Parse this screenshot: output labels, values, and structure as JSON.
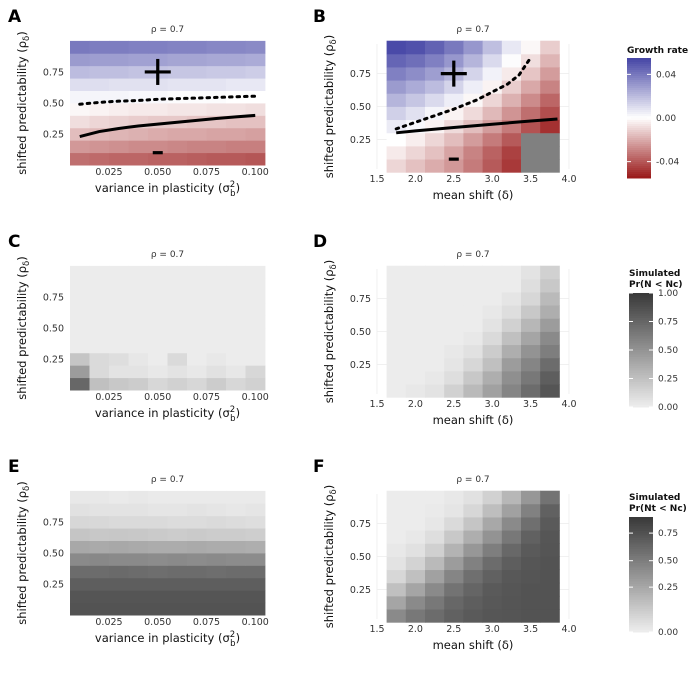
{
  "figure": {
    "panel_letters": [
      "A",
      "B",
      "C",
      "D",
      "E",
      "F"
    ],
    "strip_text": "ρ = 0.7",
    "xlabel_left": "variance in plasticity (σb²)",
    "xlabel_right": "mean shift (δ)",
    "ylabel": "shifted predictability (ρδ)"
  },
  "legends": {
    "growth": {
      "title": "Growth rate",
      "ticks": [
        "0.04",
        "0.00",
        "-0.04"
      ],
      "colors": {
        "high": "#4747a6",
        "mid": "#ffffff",
        "low": "#9b1c1c"
      }
    },
    "prob1": {
      "title_line1": "Simulated",
      "title_line2": "Pr(N < Nc)",
      "ticks": [
        "1.00",
        "0.75",
        "0.50",
        "0.25",
        "0.00"
      ]
    },
    "prob2": {
      "title_line1": "Simulated",
      "title_line2": "Pr(Nt < Nc)",
      "ticks": [
        "0.75",
        "0.50",
        "0.25",
        "0.00"
      ]
    }
  },
  "chart_data": [
    {
      "panel": "A",
      "type": "heatmap",
      "title": "ρ = 0.7",
      "xlabel": "variance in plasticity (σb²)",
      "ylabel": "shifted predictability (ρδ)",
      "x_range": [
        0.005,
        0.105
      ],
      "y_range": [
        0.025,
        0.975
      ],
      "x_ticks": [
        0.025,
        0.05,
        0.075,
        0.1
      ],
      "x_tick_labels": [
        "0.025",
        "0.050",
        "0.075",
        "0.100"
      ],
      "y_ticks": [
        0.25,
        0.5,
        0.75
      ],
      "y_tick_labels": [
        "0.25",
        "0.50",
        "0.75"
      ],
      "x_cells": [
        0.01,
        0.02,
        0.03,
        0.04,
        0.05,
        0.06,
        0.07,
        0.08,
        0.09,
        0.1
      ],
      "y_cells": [
        0.05,
        0.15,
        0.25,
        0.35,
        0.45,
        0.55,
        0.65,
        0.75,
        0.85,
        0.95
      ],
      "fill": "growth_rate",
      "grid_values": [
        [
          -0.035,
          -0.036,
          -0.037,
          -0.037,
          -0.038,
          -0.038,
          -0.039,
          -0.04,
          -0.04,
          -0.041
        ],
        [
          -0.025,
          -0.026,
          -0.027,
          -0.028,
          -0.028,
          -0.029,
          -0.03,
          -0.03,
          -0.031,
          -0.031
        ],
        [
          -0.016,
          -0.017,
          -0.018,
          -0.019,
          -0.02,
          -0.021,
          -0.021,
          -0.022,
          -0.022,
          -0.023
        ],
        [
          -0.008,
          -0.01,
          -0.011,
          -0.012,
          -0.013,
          -0.013,
          -0.014,
          -0.014,
          -0.015,
          -0.015
        ],
        [
          -0.002,
          -0.003,
          -0.004,
          -0.005,
          -0.005,
          -0.006,
          -0.006,
          -0.007,
          -0.007,
          -0.008
        ],
        [
          0.003,
          0.003,
          0.003,
          0.002,
          0.002,
          0.001,
          0.001,
          0.001,
          0.0,
          0.0
        ],
        [
          0.01,
          0.01,
          0.009,
          0.009,
          0.009,
          0.008,
          0.008,
          0.008,
          0.007,
          0.007
        ],
        [
          0.02,
          0.019,
          0.019,
          0.018,
          0.018,
          0.017,
          0.017,
          0.016,
          0.016,
          0.015
        ],
        [
          0.03,
          0.029,
          0.029,
          0.028,
          0.028,
          0.027,
          0.027,
          0.026,
          0.026,
          0.025
        ],
        [
          0.04,
          0.039,
          0.039,
          0.038,
          0.038,
          0.037,
          0.037,
          0.036,
          0.036,
          0.035
        ]
      ],
      "solid_line": {
        "x": [
          0.01,
          0.02,
          0.03,
          0.04,
          0.05,
          0.06,
          0.07,
          0.08,
          0.09,
          0.1
        ],
        "y": [
          0.23,
          0.27,
          0.295,
          0.315,
          0.33,
          0.345,
          0.36,
          0.375,
          0.388,
          0.4
        ]
      },
      "dotted_line": {
        "x": [
          0.01,
          0.02,
          0.03,
          0.04,
          0.05,
          0.06,
          0.07,
          0.08,
          0.09,
          0.1
        ],
        "y": [
          0.49,
          0.505,
          0.515,
          0.52,
          0.53,
          0.535,
          0.54,
          0.545,
          0.55,
          0.555
        ]
      },
      "plus_marker": {
        "x": 0.05,
        "y": 0.75,
        "text": "+"
      },
      "minus_marker": {
        "x": 0.05,
        "y": 0.1,
        "text": "−"
      }
    },
    {
      "panel": "B",
      "type": "heatmap",
      "title": "ρ = 0.7",
      "xlabel": "mean shift (δ)",
      "ylabel": "shifted predictability (ρδ)",
      "x_range": [
        1.5,
        4.0
      ],
      "y_range": [
        0.025,
        0.975
      ],
      "x_ticks": [
        1.5,
        2.0,
        2.5,
        3.0,
        3.5,
        4.0
      ],
      "x_tick_labels": [
        "1.5",
        "2.0",
        "2.5",
        "3.0",
        "3.5",
        "4.0"
      ],
      "y_ticks": [
        0.25,
        0.5,
        0.75
      ],
      "y_tick_labels": [
        "0.25",
        "0.50",
        "0.75"
      ],
      "x_cells": [
        1.75,
        2.0,
        2.25,
        2.5,
        2.75,
        3.0,
        3.25,
        3.5,
        3.75
      ],
      "y_cells": [
        0.05,
        0.15,
        0.25,
        0.35,
        0.45,
        0.55,
        0.65,
        0.75,
        0.85,
        0.95
      ],
      "fill": "growth_rate (NA shown grey)",
      "grid_values": [
        [
          -0.01,
          -0.015,
          -0.02,
          -0.025,
          -0.032,
          -0.04,
          -0.048,
          null,
          null
        ],
        [
          -0.005,
          -0.01,
          -0.015,
          -0.022,
          -0.03,
          -0.038,
          -0.046,
          null,
          null
        ],
        [
          0.0,
          -0.004,
          -0.01,
          -0.016,
          -0.024,
          -0.032,
          -0.04,
          null,
          null
        ],
        [
          0.006,
          0.002,
          -0.003,
          -0.009,
          -0.016,
          -0.024,
          -0.032,
          -0.042,
          -0.05
        ],
        [
          0.014,
          0.009,
          0.003,
          -0.003,
          -0.009,
          -0.017,
          -0.026,
          -0.035,
          -0.043
        ],
        [
          0.022,
          0.017,
          0.011,
          0.005,
          -0.002,
          -0.01,
          -0.019,
          -0.028,
          -0.037
        ],
        [
          0.03,
          0.025,
          0.02,
          0.013,
          0.005,
          -0.003,
          -0.012,
          -0.021,
          -0.03
        ],
        [
          0.038,
          0.034,
          0.029,
          0.022,
          0.013,
          0.004,
          -0.005,
          -0.014,
          -0.024
        ],
        [
          0.046,
          0.043,
          0.038,
          0.031,
          0.022,
          0.011,
          0.001,
          -0.008,
          -0.018
        ],
        [
          0.054,
          0.052,
          0.047,
          0.04,
          0.031,
          0.019,
          0.007,
          -0.002,
          -0.012
        ]
      ],
      "solid_line": {
        "x": [
          1.75,
          2.0,
          2.5,
          3.0,
          3.5,
          3.85
        ],
        "y": [
          0.3,
          0.315,
          0.34,
          0.365,
          0.39,
          0.405
        ]
      },
      "dotted_line": {
        "x": [
          1.75,
          2.0,
          2.5,
          2.8,
          3.0,
          3.2,
          3.35,
          3.5
        ],
        "y": [
          0.33,
          0.38,
          0.48,
          0.55,
          0.61,
          0.67,
          0.74,
          0.87
        ]
      },
      "plus_marker": {
        "x": 2.5,
        "y": 0.75,
        "text": "+"
      },
      "minus_marker": {
        "x": 2.5,
        "y": 0.1,
        "text": "−"
      }
    },
    {
      "panel": "C",
      "type": "heatmap",
      "title": "ρ = 0.7",
      "xlabel": "variance in plasticity (σb²)",
      "ylabel": "shifted predictability (ρδ)",
      "x_range": [
        0.005,
        0.105
      ],
      "y_range": [
        0.025,
        0.975
      ],
      "x_ticks": [
        0.025,
        0.05,
        0.075,
        0.1
      ],
      "x_tick_labels": [
        "0.025",
        "0.050",
        "0.075",
        "0.100"
      ],
      "y_ticks": [
        0.25,
        0.5,
        0.75
      ],
      "y_tick_labels": [
        "0.25",
        "0.50",
        "0.75"
      ],
      "x_cells": [
        0.01,
        0.02,
        0.03,
        0.04,
        0.05,
        0.06,
        0.07,
        0.08,
        0.09,
        0.1
      ],
      "y_cells": [
        0.05,
        0.15,
        0.25,
        0.35,
        0.45,
        0.55,
        0.65,
        0.75,
        0.85,
        0.95
      ],
      "fill": "Pr(N < Nc)",
      "grid_values": [
        [
          0.75,
          0.25,
          0.2,
          0.18,
          0.12,
          0.15,
          0.12,
          0.18,
          0.12,
          0.15
        ],
        [
          0.45,
          0.1,
          0.05,
          0.05,
          0.02,
          0.05,
          0.02,
          0.06,
          0.03,
          0.12
        ],
        [
          0.22,
          0.1,
          0.08,
          0.03,
          0.0,
          0.1,
          0.0,
          0.02,
          0.0,
          0.0
        ],
        [
          0.0,
          0.0,
          0.0,
          0.0,
          0.0,
          0.0,
          0.0,
          0.0,
          0.0,
          0.0
        ],
        [
          0,
          0,
          0,
          0,
          0,
          0,
          0,
          0,
          0,
          0
        ],
        [
          0,
          0,
          0,
          0,
          0,
          0,
          0,
          0,
          0,
          0
        ],
        [
          0,
          0,
          0,
          0,
          0,
          0,
          0,
          0,
          0,
          0
        ],
        [
          0,
          0,
          0,
          0,
          0,
          0,
          0,
          0,
          0,
          0
        ],
        [
          0,
          0,
          0,
          0,
          0,
          0,
          0,
          0,
          0,
          0
        ],
        [
          0,
          0,
          0,
          0,
          0,
          0,
          0,
          0,
          0,
          0
        ]
      ]
    },
    {
      "panel": "D",
      "type": "heatmap",
      "title": "ρ = 0.7",
      "xlabel": "mean shift (δ)",
      "ylabel": "shifted predictability (ρδ)",
      "x_range": [
        1.5,
        4.0
      ],
      "y_range": [
        0.025,
        0.975
      ],
      "x_ticks": [
        1.5,
        2.0,
        2.5,
        3.0,
        3.5,
        4.0
      ],
      "x_tick_labels": [
        "1.5",
        "2.0",
        "2.5",
        "3.0",
        "3.5",
        "4.0"
      ],
      "y_ticks": [
        0.25,
        0.5,
        0.75
      ],
      "y_tick_labels": [
        "0.25",
        "0.50",
        "0.75"
      ],
      "x_cells": [
        1.75,
        2.0,
        2.25,
        2.5,
        2.75,
        3.0,
        3.25,
        3.5,
        3.75
      ],
      "y_cells": [
        0.05,
        0.15,
        0.25,
        0.35,
        0.45,
        0.55,
        0.65,
        0.75,
        0.85,
        0.95
      ],
      "fill": "Pr(N < Nc)",
      "grid_values": [
        [
          0.0,
          0.02,
          0.05,
          0.15,
          0.28,
          0.42,
          0.58,
          0.72,
          0.85
        ],
        [
          0.0,
          0.0,
          0.02,
          0.08,
          0.2,
          0.35,
          0.52,
          0.65,
          0.8
        ],
        [
          0.0,
          0.0,
          0.0,
          0.04,
          0.12,
          0.25,
          0.45,
          0.58,
          0.72
        ],
        [
          0.0,
          0.0,
          0.0,
          0.02,
          0.06,
          0.18,
          0.35,
          0.5,
          0.62
        ],
        [
          0.0,
          0.0,
          0.0,
          0.0,
          0.02,
          0.1,
          0.25,
          0.4,
          0.55
        ],
        [
          0.0,
          0.0,
          0.0,
          0.0,
          0.0,
          0.05,
          0.15,
          0.3,
          0.45
        ],
        [
          0.0,
          0.0,
          0.0,
          0.0,
          0.0,
          0.02,
          0.08,
          0.2,
          0.35
        ],
        [
          0.0,
          0.0,
          0.0,
          0.0,
          0.0,
          0.0,
          0.04,
          0.12,
          0.28
        ],
        [
          0.0,
          0.0,
          0.0,
          0.0,
          0.0,
          0.0,
          0.0,
          0.08,
          0.2
        ],
        [
          0.0,
          0.0,
          0.0,
          0.0,
          0.0,
          0.0,
          0.0,
          0.05,
          0.15
        ]
      ]
    },
    {
      "panel": "E",
      "type": "heatmap",
      "title": "ρ = 0.7",
      "xlabel": "variance in plasticity (σb²)",
      "ylabel": "shifted predictability (ρδ)",
      "x_range": [
        0.005,
        0.105
      ],
      "y_range": [
        0.025,
        0.975
      ],
      "x_ticks": [
        0.025,
        0.05,
        0.075,
        0.1
      ],
      "x_tick_labels": [
        "0.025",
        "0.050",
        "0.075",
        "0.100"
      ],
      "y_ticks": [
        0.25,
        0.5,
        0.75
      ],
      "y_tick_labels": [
        "0.25",
        "0.50",
        "0.75"
      ],
      "x_cells": [
        0.01,
        0.02,
        0.03,
        0.04,
        0.05,
        0.06,
        0.07,
        0.08,
        0.09,
        0.1
      ],
      "y_cells": [
        0.05,
        0.15,
        0.25,
        0.35,
        0.45,
        0.55,
        0.65,
        0.75,
        0.85,
        0.95
      ],
      "fill": "Pr(Nt < Nc)",
      "grid_values": [
        [
          0.86,
          0.86,
          0.86,
          0.86,
          0.86,
          0.86,
          0.86,
          0.86,
          0.86,
          0.86
        ],
        [
          0.85,
          0.85,
          0.85,
          0.85,
          0.85,
          0.85,
          0.85,
          0.85,
          0.85,
          0.85
        ],
        [
          0.8,
          0.8,
          0.8,
          0.8,
          0.8,
          0.8,
          0.8,
          0.8,
          0.8,
          0.8
        ],
        [
          0.72,
          0.72,
          0.73,
          0.72,
          0.71,
          0.72,
          0.72,
          0.71,
          0.72,
          0.72
        ],
        [
          0.55,
          0.56,
          0.55,
          0.55,
          0.54,
          0.55,
          0.54,
          0.55,
          0.54,
          0.54
        ],
        [
          0.38,
          0.37,
          0.38,
          0.37,
          0.36,
          0.36,
          0.37,
          0.36,
          0.36,
          0.35
        ],
        [
          0.22,
          0.2,
          0.21,
          0.2,
          0.19,
          0.18,
          0.19,
          0.18,
          0.18,
          0.17
        ],
        [
          0.12,
          0.11,
          0.1,
          0.1,
          0.1,
          0.09,
          0.09,
          0.1,
          0.09,
          0.08
        ],
        [
          0.06,
          0.05,
          0.05,
          0.05,
          0.04,
          0.04,
          0.05,
          0.04,
          0.03,
          0.04
        ],
        [
          0.02,
          0.02,
          0.01,
          0.02,
          0.01,
          0.01,
          0.01,
          0.01,
          0.01,
          0.01
        ]
      ]
    },
    {
      "panel": "F",
      "type": "heatmap",
      "title": "ρ = 0.7",
      "xlabel": "mean shift (δ)",
      "ylabel": "shifted predictability (ρδ)",
      "x_range": [
        1.5,
        4.0
      ],
      "y_range": [
        0.025,
        0.975
      ],
      "x_ticks": [
        1.5,
        2.0,
        2.5,
        3.0,
        3.5,
        4.0
      ],
      "x_tick_labels": [
        "1.5",
        "2.0",
        "2.5",
        "3.0",
        "3.5",
        "4.0"
      ],
      "y_ticks": [
        0.25,
        0.5,
        0.75
      ],
      "y_tick_labels": [
        "0.25",
        "0.50",
        "0.75"
      ],
      "x_cells": [
        1.75,
        2.0,
        2.25,
        2.5,
        2.75,
        3.0,
        3.25,
        3.5,
        3.75
      ],
      "y_cells": [
        0.05,
        0.15,
        0.25,
        0.35,
        0.45,
        0.55,
        0.65,
        0.75,
        0.85,
        0.95
      ],
      "fill": "Pr(Nt < Nc)",
      "grid_values": [
        [
          0.55,
          0.65,
          0.72,
          0.78,
          0.82,
          0.84,
          0.85,
          0.86,
          0.86
        ],
        [
          0.4,
          0.55,
          0.65,
          0.75,
          0.8,
          0.83,
          0.85,
          0.86,
          0.86
        ],
        [
          0.25,
          0.4,
          0.55,
          0.68,
          0.76,
          0.82,
          0.84,
          0.86,
          0.86
        ],
        [
          0.12,
          0.25,
          0.42,
          0.58,
          0.7,
          0.78,
          0.83,
          0.85,
          0.86
        ],
        [
          0.05,
          0.14,
          0.28,
          0.45,
          0.6,
          0.72,
          0.8,
          0.84,
          0.86
        ],
        [
          0.02,
          0.06,
          0.16,
          0.32,
          0.48,
          0.62,
          0.74,
          0.82,
          0.85
        ],
        [
          0.0,
          0.02,
          0.08,
          0.2,
          0.35,
          0.5,
          0.65,
          0.78,
          0.84
        ],
        [
          0.0,
          0.0,
          0.03,
          0.1,
          0.22,
          0.38,
          0.55,
          0.7,
          0.82
        ],
        [
          0.0,
          0.0,
          0.01,
          0.04,
          0.12,
          0.26,
          0.42,
          0.6,
          0.78
        ],
        [
          0.0,
          0.0,
          0.0,
          0.02,
          0.06,
          0.15,
          0.3,
          0.48,
          0.68
        ]
      ]
    }
  ]
}
